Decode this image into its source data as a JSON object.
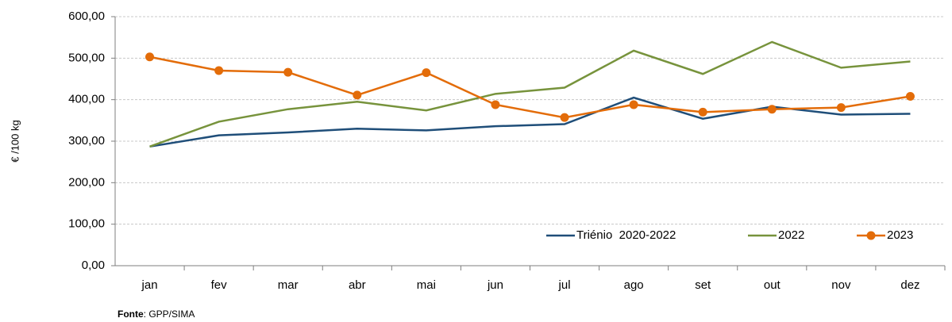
{
  "chart_data": {
    "type": "line",
    "y_label": "€ /100 kg",
    "categories": [
      "jan",
      "fev",
      "mar",
      "abr",
      "mai",
      "jun",
      "jul",
      "ago",
      "set",
      "out",
      "nov",
      "dez"
    ],
    "series": [
      {
        "name": "Triénio  2020-2022",
        "color": "#1f4e79",
        "marker": false,
        "values": [
          287,
          314,
          321,
          330,
          326,
          336,
          341,
          405,
          354,
          383,
          364,
          366
        ]
      },
      {
        "name": "2022",
        "color": "#77933c",
        "marker": false,
        "values": [
          287,
          347,
          377,
          395,
          374,
          414,
          429,
          518,
          462,
          539,
          477,
          492
        ]
      },
      {
        "name": "2023",
        "color": "#e36c09",
        "marker": true,
        "values": [
          503,
          470,
          466,
          411,
          465,
          388,
          357,
          388,
          370,
          377,
          381,
          408
        ]
      }
    ],
    "ylim": [
      0,
      600
    ],
    "yticks": [
      {
        "value": 0,
        "label": "0,00"
      },
      {
        "value": 100,
        "label": "100,00"
      },
      {
        "value": 200,
        "label": "200,00"
      },
      {
        "value": 300,
        "label": "300,00"
      },
      {
        "value": 400,
        "label": "400,00"
      },
      {
        "value": 500,
        "label": "500,00"
      },
      {
        "value": 600,
        "label": "600,00"
      }
    ],
    "grid": true,
    "legend": "bottom-right",
    "source_label": "Fonte",
    "source_text": ": GPP/SIMA"
  }
}
